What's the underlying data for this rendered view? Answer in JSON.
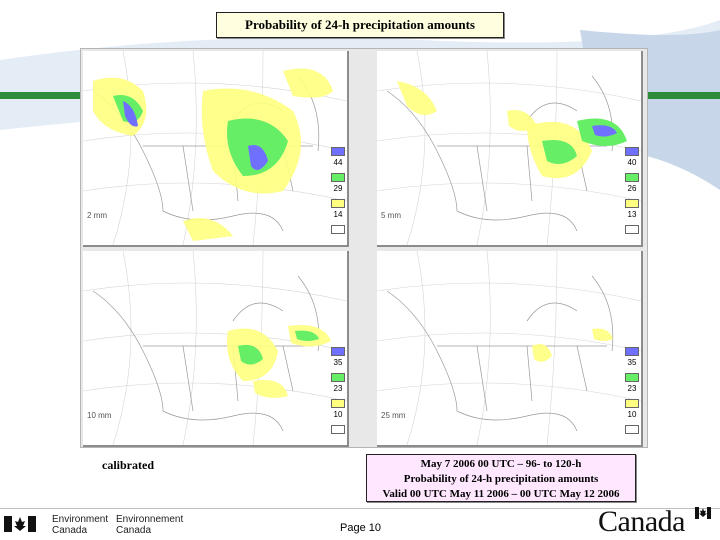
{
  "title": "Probability of 24-h precipitation amounts",
  "colors": {
    "title_bg": "#ffffe0",
    "info_bg": "#ffe8ff",
    "prob_yellow": "#ffff80",
    "prob_green": "#66ee66",
    "prob_blue": "#7070ff",
    "swoosh_green": "#2e8b3a",
    "swoosh_blue": "#9fb8d8"
  },
  "panels": [
    {
      "threshold_label": "2 mm",
      "legend": [
        "44",
        "29",
        "14"
      ]
    },
    {
      "threshold_label": "5 mm",
      "legend": [
        "40",
        "26",
        "13"
      ]
    },
    {
      "threshold_label": "10 mm",
      "legend": [
        "35",
        "23",
        "10"
      ]
    },
    {
      "threshold_label": "25 mm",
      "legend": [
        "35",
        "23",
        "10"
      ]
    }
  ],
  "calibrated_label": "calibrated",
  "info_lines": [
    "May 7 2006 00 UTC – 96- to 120-h",
    "Probability of 24-h precipitation amounts",
    "Valid 00 UTC May 11 2006 – 00 UTC May 12 2006"
  ],
  "footer": {
    "env_en_1": "Environment",
    "env_en_2": "Canada",
    "env_fr_1": "Environnement",
    "env_fr_2": "Canada",
    "page": "Page 10",
    "wordmark": "Canada"
  }
}
